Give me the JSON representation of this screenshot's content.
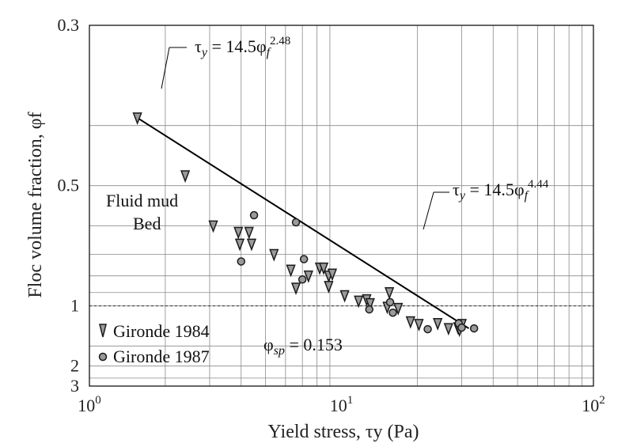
{
  "chart_data": {
    "type": "scatter",
    "title": "",
    "xlabel": "Yield stress, τy (Pa)",
    "ylabel": "Floc volume fraction, φf",
    "x_scale": "log",
    "y_scale": "reciprocal",
    "xlim": [
      1,
      100
    ],
    "ylim": [
      0.3,
      3
    ],
    "x_ticks": [
      {
        "value": 1,
        "base": "10",
        "exp": "0"
      },
      {
        "value": 10,
        "base": "10",
        "exp": "1"
      },
      {
        "value": 100,
        "base": "10",
        "exp": "2"
      }
    ],
    "y_ticks": [
      {
        "value": 0.3,
        "label": "0.3"
      },
      {
        "value": 0.5,
        "label": "0.5"
      },
      {
        "value": 1,
        "label": "1"
      },
      {
        "value": 2,
        "label": "2"
      },
      {
        "value": 3,
        "label": "3"
      }
    ],
    "grid": true,
    "series": [
      {
        "name": "Gironde 1984",
        "marker": "triangle-down",
        "points": [
          [
            1.55,
            0.39
          ],
          [
            2.4,
            0.48
          ],
          [
            3.1,
            0.6
          ],
          [
            3.9,
            0.62
          ],
          [
            4.3,
            0.62
          ],
          [
            3.95,
            0.66
          ],
          [
            4.4,
            0.66
          ],
          [
            5.4,
            0.7
          ],
          [
            6.3,
            0.77
          ],
          [
            6.6,
            0.87
          ],
          [
            7.4,
            0.8
          ],
          [
            8.2,
            0.76
          ],
          [
            8.5,
            0.76
          ],
          [
            8.9,
            0.8
          ],
          [
            9.2,
            0.79
          ],
          [
            8.9,
            0.86
          ],
          [
            10.3,
            0.92
          ],
          [
            11.7,
            0.96
          ],
          [
            12.6,
            0.95
          ],
          [
            13.0,
            0.98
          ],
          [
            15.2,
            1.01
          ],
          [
            15.5,
            0.9
          ],
          [
            16.8,
            1.02
          ],
          [
            18.8,
            1.15
          ],
          [
            20.3,
            1.18
          ],
          [
            24.1,
            1.17
          ],
          [
            26.6,
            1.23
          ],
          [
            29.0,
            1.22
          ],
          [
            29.4,
            1.25
          ],
          [
            30.1,
            1.18
          ]
        ]
      },
      {
        "name": "Gironde 1987",
        "marker": "circle",
        "points": [
          [
            4.5,
            0.57
          ],
          [
            6.6,
            0.59
          ],
          [
            4.0,
            0.73
          ],
          [
            7.1,
            0.72
          ],
          [
            7.0,
            0.82
          ],
          [
            12.9,
            1.03
          ],
          [
            15.6,
            0.97
          ],
          [
            16.0,
            1.06
          ],
          [
            22.0,
            1.24
          ],
          [
            29.2,
            1.17
          ],
          [
            30.0,
            1.22
          ],
          [
            33.6,
            1.23
          ]
        ]
      }
    ],
    "fit_line": {
      "x": [
        1.55,
        32.0
      ],
      "y": [
        0.39,
        1.23
      ]
    },
    "fluid_mud_boundary": 1,
    "annotations": {
      "eq1": {
        "lead": "τ",
        "sub": "y",
        "mid": " = 14.5φ",
        "sub2": "f",
        "sup": "2.48"
      },
      "eq2": {
        "lead": "τ",
        "sub": "y",
        "mid": " = 14.5φ",
        "sub2": "f",
        "sup": "4.44"
      },
      "phi_sp": {
        "lead": "φ",
        "sub": "sp",
        "rest": " = 0.153"
      },
      "fluid_mud": "Fluid mud",
      "bed": "Bed"
    },
    "legend_position": "bottom-left"
  },
  "colors": {
    "grid": "#8a8a8a",
    "marker_edge": "#1a1a1a",
    "marker_fill": "#9a9a9a",
    "line": "#000000"
  }
}
